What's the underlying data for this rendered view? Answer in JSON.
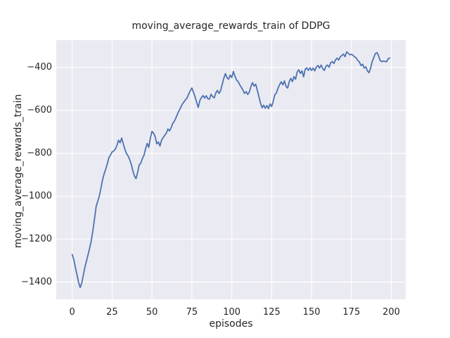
{
  "chart_data": {
    "type": "line",
    "title": "moving_average_rewards_train of DDPG",
    "xlabel": "episodes",
    "ylabel": "moving_average_rewards_train",
    "x_start": 0,
    "x_step": 1,
    "values": [
      -1272,
      -1295,
      -1332,
      -1365,
      -1402,
      -1425,
      -1404,
      -1366,
      -1330,
      -1300,
      -1270,
      -1240,
      -1205,
      -1158,
      -1104,
      -1048,
      -1024,
      -999,
      -963,
      -924,
      -896,
      -874,
      -849,
      -820,
      -808,
      -794,
      -789,
      -781,
      -764,
      -739,
      -751,
      -729,
      -756,
      -781,
      -801,
      -812,
      -829,
      -851,
      -881,
      -906,
      -918,
      -889,
      -854,
      -846,
      -824,
      -809,
      -779,
      -754,
      -772,
      -729,
      -698,
      -706,
      -723,
      -756,
      -747,
      -766,
      -739,
      -727,
      -716,
      -706,
      -687,
      -696,
      -681,
      -661,
      -651,
      -635,
      -617,
      -601,
      -587,
      -571,
      -561,
      -551,
      -542,
      -524,
      -509,
      -496,
      -516,
      -537,
      -563,
      -586,
      -554,
      -541,
      -531,
      -543,
      -532,
      -546,
      -548,
      -525,
      -536,
      -542,
      -519,
      -507,
      -521,
      -509,
      -479,
      -451,
      -429,
      -448,
      -455,
      -436,
      -447,
      -419,
      -441,
      -459,
      -466,
      -481,
      -493,
      -506,
      -521,
      -513,
      -526,
      -515,
      -489,
      -471,
      -487,
      -478,
      -506,
      -536,
      -566,
      -588,
      -576,
      -590,
      -578,
      -592,
      -570,
      -582,
      -557,
      -527,
      -519,
      -496,
      -480,
      -467,
      -481,
      -463,
      -489,
      -496,
      -467,
      -451,
      -466,
      -443,
      -455,
      -421,
      -411,
      -428,
      -416,
      -444,
      -409,
      -402,
      -414,
      -402,
      -414,
      -403,
      -416,
      -398,
      -391,
      -403,
      -389,
      -405,
      -414,
      -395,
      -389,
      -399,
      -378,
      -373,
      -382,
      -365,
      -357,
      -366,
      -351,
      -344,
      -338,
      -350,
      -328,
      -334,
      -341,
      -339,
      -344,
      -351,
      -356,
      -368,
      -375,
      -392,
      -385,
      -403,
      -397,
      -416,
      -425,
      -403,
      -373,
      -354,
      -335,
      -331,
      -346,
      -368,
      -373,
      -370,
      -372,
      -374,
      -360,
      -356
    ],
    "xlim": [
      -10,
      209
    ],
    "ylim": [
      -1480,
      -273
    ],
    "xticks": [
      0,
      25,
      50,
      75,
      100,
      125,
      150,
      175,
      200
    ],
    "yticks": [
      -400,
      -600,
      -800,
      -1000,
      -1200,
      -1400
    ],
    "grid": true,
    "legend_position": "none",
    "line_color": "#4c72b0",
    "plot_background_color": "#eaeaf2",
    "grid_color": "#ffffff",
    "figure_background_color": "#ffffff",
    "text_color": "#262626"
  }
}
